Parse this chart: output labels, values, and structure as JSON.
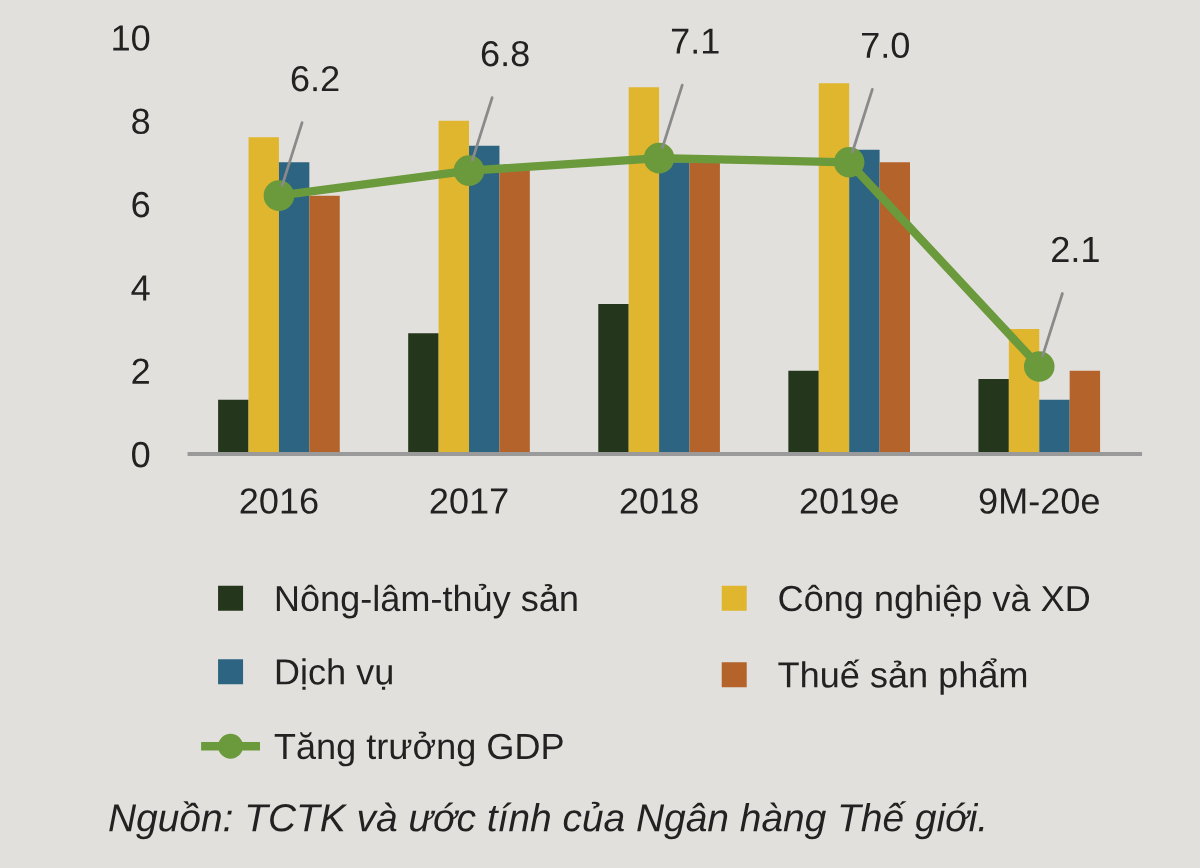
{
  "chart_data": {
    "type": "bar",
    "categories": [
      "2016",
      "2017",
      "2018",
      "2019e",
      "9M-20e"
    ],
    "series": [
      {
        "name": "Nông-lâm-thủy sản",
        "color": "#24361c",
        "values": [
          1.3,
          2.9,
          3.6,
          2.0,
          1.8
        ]
      },
      {
        "name": "Công nghiệp và XD",
        "color": "#e0b62e",
        "values": [
          7.6,
          8.0,
          8.8,
          8.9,
          3.0
        ]
      },
      {
        "name": "Dịch vụ",
        "color": "#2c6482",
        "values": [
          7.0,
          7.4,
          7.0,
          7.3,
          1.3
        ]
      },
      {
        "name": "Thuế sản phẩm",
        "color": "#b4632a",
        "values": [
          6.2,
          6.9,
          7.0,
          7.0,
          2.0
        ]
      },
      {
        "name": "Tăng trưởng GDP",
        "type": "line",
        "color": "#6b9a3c",
        "values": [
          6.2,
          6.8,
          7.1,
          7.0,
          2.1
        ],
        "value_labels": [
          "6.2",
          "6.8",
          "7.1",
          "7.0",
          "2.1"
        ]
      }
    ],
    "ylim": [
      0,
      10
    ],
    "yticks": [
      0,
      2,
      4,
      6,
      8,
      10
    ],
    "grid": false,
    "marker": "circle",
    "legend": "bottom",
    "annotations": [
      "Nguồn: TCTK và ước tính của Ngân hàng Thế giới."
    ]
  }
}
